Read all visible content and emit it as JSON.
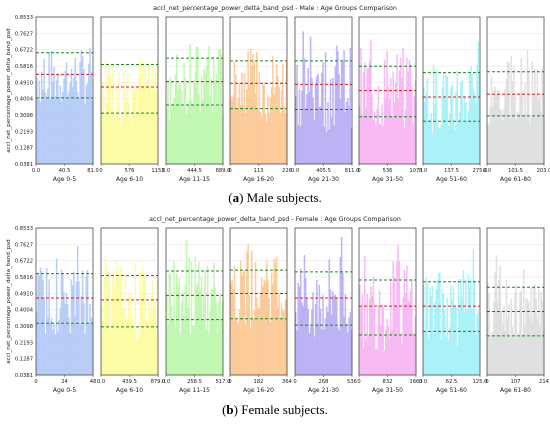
{
  "figure_captions": [
    {
      "label": "a",
      "text": "Male subjects."
    },
    {
      "label": "b",
      "text": "Female subjects."
    }
  ],
  "chart_data": [
    {
      "type": "area",
      "title": "accl_net_percentage_power_delta_band_psd - Male : Age Groups Comparison",
      "ylabel": "accl_net_percentage_power_delta_band_psd",
      "yticks": [
        "0.8533",
        "0.7627",
        "0.6722",
        "0.5816",
        "0.4910",
        "0.4004",
        "0.3098",
        "0.2193",
        "0.1287",
        "0.0381"
      ],
      "ylim": [
        0.0381,
        0.8533
      ],
      "grid": true,
      "panels": [
        {
          "xlabel": "Age 0-5",
          "xticks": [
            "0.0",
            "40.5",
            "81.0"
          ],
          "xlim": [
            0,
            81
          ],
          "color": "#aec7f5",
          "upper": 0.655,
          "mean": 0.535,
          "lower": 0.405,
          "level": 0.52,
          "spread": 0.16
        },
        {
          "xlabel": "Age 6-10",
          "xticks": [
            "0",
            "576",
            "1153"
          ],
          "xlim": [
            0,
            1153
          ],
          "color": "#fbfb9a",
          "upper": 0.59,
          "mean": 0.465,
          "lower": 0.32,
          "level": 0.46,
          "spread": 0.2
        },
        {
          "xlabel": "Age 11-15",
          "xticks": [
            "0.0",
            "444.5",
            "889.0"
          ],
          "xlim": [
            0,
            889
          ],
          "color": "#b9f7a8",
          "upper": 0.625,
          "mean": 0.495,
          "lower": 0.365,
          "level": 0.49,
          "spread": 0.22
        },
        {
          "xlabel": "Age 16-20",
          "xticks": [
            "0",
            "113",
            "226"
          ],
          "xlim": [
            0,
            226
          ],
          "color": "#fbc48d",
          "upper": 0.61,
          "mean": 0.485,
          "lower": 0.345,
          "level": 0.48,
          "spread": 0.2
        },
        {
          "xlabel": "Age 21-30",
          "xticks": [
            "0.0",
            "405.5",
            "811.0"
          ],
          "xlim": [
            0,
            811
          ],
          "color": "#b3a8f2",
          "upper": 0.61,
          "mean": 0.48,
          "lower": 0.34,
          "level": 0.48,
          "spread": 0.24
        },
        {
          "xlabel": "Age 31-50",
          "xticks": [
            "0",
            "536",
            "1073"
          ],
          "xlim": [
            0,
            1073
          ],
          "color": "#f7b0f2",
          "upper": 0.58,
          "mean": 0.445,
          "lower": 0.3,
          "level": 0.45,
          "spread": 0.24
        },
        {
          "xlabel": "Age 51-60",
          "xticks": [
            "0.0",
            "137.5",
            "275.0"
          ],
          "xlim": [
            0,
            275
          ],
          "color": "#9ff0f7",
          "upper": 0.545,
          "mean": 0.41,
          "lower": 0.275,
          "level": 0.41,
          "spread": 0.2
        },
        {
          "xlabel": "Age 61-80",
          "xticks": [
            "0.0",
            "101.5",
            "203.0"
          ],
          "xlim": [
            0,
            203
          ],
          "color": "#dcdcdc",
          "upper": 0.55,
          "mean": 0.425,
          "lower": 0.305,
          "level": 0.43,
          "spread": 0.18
        }
      ]
    },
    {
      "type": "area",
      "title": "accl_net_percentage_power_delta_band_psd - Female : Age Groups Comparison",
      "ylabel": "accl_net_percentage_power_delta_band_psd",
      "yticks": [
        "0.8533",
        "0.7627",
        "0.6722",
        "0.5816",
        "0.4910",
        "0.4004",
        "0.3098",
        "0.2193",
        "0.1287",
        "0.0381"
      ],
      "ylim": [
        0.0381,
        0.8533
      ],
      "grid": true,
      "panels": [
        {
          "xlabel": "Age 0-5",
          "xticks": [
            "0",
            "24",
            "48"
          ],
          "xlim": [
            0,
            48
          ],
          "color": "#aec7f5",
          "upper": 0.6,
          "mean": 0.465,
          "lower": 0.325,
          "level": 0.46,
          "spread": 0.2
        },
        {
          "xlabel": "Age 6-10",
          "xticks": [
            "0.0",
            "439.5",
            "879.0"
          ],
          "xlim": [
            0,
            879
          ],
          "color": "#fbfb9a",
          "upper": 0.59,
          "mean": 0.455,
          "lower": 0.305,
          "level": 0.45,
          "spread": 0.22
        },
        {
          "xlabel": "Age 11-15",
          "xticks": [
            "0.0",
            "258.5",
            "517.0"
          ],
          "xlim": [
            0,
            517
          ],
          "color": "#b9f7a8",
          "upper": 0.615,
          "mean": 0.48,
          "lower": 0.345,
          "level": 0.48,
          "spread": 0.22
        },
        {
          "xlabel": "Age 16-20",
          "xticks": [
            "0",
            "182",
            "364"
          ],
          "xlim": [
            0,
            364
          ],
          "color": "#fbc48d",
          "upper": 0.62,
          "mean": 0.49,
          "lower": 0.35,
          "level": 0.49,
          "spread": 0.2
        },
        {
          "xlabel": "Age 21-30",
          "xticks": [
            "0",
            "268",
            "536"
          ],
          "xlim": [
            0,
            536
          ],
          "color": "#b3a8f2",
          "upper": 0.61,
          "mean": 0.465,
          "lower": 0.315,
          "level": 0.47,
          "spread": 0.24
        },
        {
          "xlabel": "Age 31-50",
          "xticks": [
            "0",
            "832",
            "1663"
          ],
          "xlim": [
            0,
            1663
          ],
          "color": "#f7b0f2",
          "upper": 0.565,
          "mean": 0.42,
          "lower": 0.26,
          "level": 0.43,
          "spread": 0.26
        },
        {
          "xlabel": "Age 51-60",
          "xticks": [
            "0.0",
            "62.5",
            "125.0"
          ],
          "xlim": [
            0,
            125
          ],
          "color": "#9ff0f7",
          "upper": 0.555,
          "mean": 0.42,
          "lower": 0.28,
          "level": 0.42,
          "spread": 0.2
        },
        {
          "xlabel": "Age 61-80",
          "xticks": [
            "0",
            "107",
            "214"
          ],
          "xlim": [
            0,
            214
          ],
          "color": "#dcdcdc",
          "upper": 0.525,
          "mean": 0.39,
          "lower": 0.255,
          "level": 0.39,
          "spread": 0.18
        }
      ]
    }
  ]
}
